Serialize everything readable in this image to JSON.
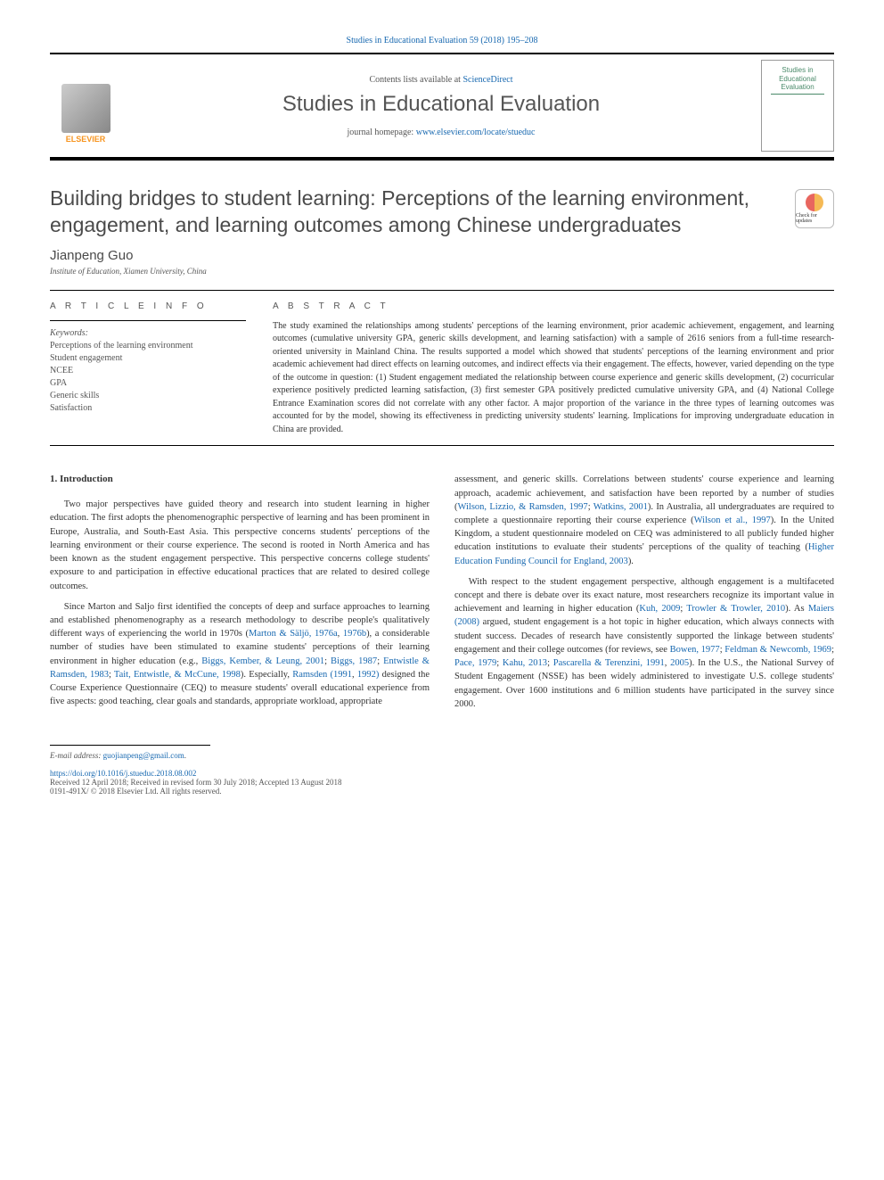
{
  "header": {
    "top_citation": "Studies in Educational Evaluation 59 (2018) 195–208",
    "contents_prefix": "Contents lists available at ",
    "contents_link": "ScienceDirect",
    "journal_name": "Studies in Educational Evaluation",
    "homepage_prefix": "journal homepage: ",
    "homepage_url": "www.elsevier.com/locate/stueduc",
    "elsevier_label": "ELSEVIER",
    "cover_line1": "Studies in",
    "cover_line2": "Educational",
    "cover_line3": "Evaluation"
  },
  "article": {
    "title": "Building bridges to student learning: Perceptions of the learning environment, engagement, and learning outcomes among Chinese undergraduates",
    "author": "Jianpeng Guo",
    "affiliation": "Institute of Education, Xiamen University, China",
    "crossmark_label": "Check for updates"
  },
  "info": {
    "heading": "A R T I C L E  I N F O",
    "keywords_label": "Keywords:",
    "keywords": "Perceptions of the learning environment\nStudent engagement\nNCEE\nGPA\nGeneric skills\nSatisfaction"
  },
  "abstract": {
    "heading": "A B S T R A C T",
    "text": "The study examined the relationships among students' perceptions of the learning environment, prior academic achievement, engagement, and learning outcomes (cumulative university GPA, generic skills development, and learning satisfaction) with a sample of 2616 seniors from a full-time research-oriented university in Mainland China. The results supported a model which showed that students' perceptions of the learning environment and prior academic achievement had direct effects on learning outcomes, and indirect effects via their engagement. The effects, however, varied depending on the type of the outcome in question: (1) Student engagement mediated the relationship between course experience and generic skills development, (2) cocurricular experience positively predicted learning satisfaction, (3) first semester GPA positively predicted cumulative university GPA, and (4) National College Entrance Examination scores did not correlate with any other factor. A major proportion of the variance in the three types of learning outcomes was accounted for by the model, showing its effectiveness in predicting university students' learning. Implications for improving undergraduate education in China are provided."
  },
  "body": {
    "section_heading": "1. Introduction",
    "left_p1": "Two major perspectives have guided theory and research into student learning in higher education. The first adopts the phenomenographic perspective of learning and has been prominent in Europe, Australia, and South-East Asia. This perspective concerns students' perceptions of the learning environment or their course experience. The second is rooted in North America and has been known as the student engagement perspective. This perspective concerns college students' exposure to and participation in effective educational practices that are related to desired college outcomes.",
    "left_p2_a": "Since Marton and Saljo first identified the concepts of deep and surface approaches to learning and established phenomenography as a research methodology to describe people's qualitatively different ways of experiencing the world in 1970s (",
    "left_p2_cite1": "Marton & Säljö, 1976a",
    "left_p2_b": ", ",
    "left_p2_cite2": "1976b",
    "left_p2_c": "), a considerable number of studies have been stimulated to examine students' perceptions of their learning environment in higher education (e.g., ",
    "left_p2_cite3": "Biggs, Kember, & Leung, 2001",
    "left_p2_d": "; ",
    "left_p2_cite4": "Biggs, 1987",
    "left_p2_e": "; ",
    "left_p2_cite5": "Entwistle & Ramsden, 1983",
    "left_p2_f": "; ",
    "left_p2_cite6": "Tait, Entwistle, & McCune, 1998",
    "left_p2_g": "). Especially, ",
    "left_p2_cite7": "Ramsden (1991",
    "left_p2_h": ", ",
    "left_p2_cite8": "1992)",
    "left_p2_i": " designed the Course Experience Questionnaire (CEQ) to measure students' overall educational experience from five aspects: good teaching, clear goals and standards, appropriate workload, appropriate",
    "right_p1_a": "assessment, and generic skills. Correlations between students' course experience and learning approach, academic achievement, and satisfaction have been reported by a number of studies (",
    "right_p1_cite1": "Wilson, Lizzio, & Ramsden, 1997",
    "right_p1_b": "; ",
    "right_p1_cite2": "Watkins, 2001",
    "right_p1_c": "). In Australia, all undergraduates are required to complete a questionnaire reporting their course experience (",
    "right_p1_cite3": "Wilson et al., 1997",
    "right_p1_d": "). In the United Kingdom, a student questionnaire modeled on CEQ was administered to all publicly funded higher education institutions to evaluate their students' perceptions of the quality of teaching (",
    "right_p1_cite4": "Higher Education Funding Council for England, 2003",
    "right_p1_e": ").",
    "right_p2_a": "With respect to the student engagement perspective, although engagement is a multifaceted concept and there is debate over its exact nature, most researchers recognize its important value in achievement and learning in higher education (",
    "right_p2_cite1": "Kuh, 2009",
    "right_p2_b": "; ",
    "right_p2_cite2": "Trowler & Trowler, 2010",
    "right_p2_c": "). As ",
    "right_p2_cite3": "Maiers (2008)",
    "right_p2_d": " argued, student engagement is a hot topic in higher education, which always connects with student success. Decades of research have consistently supported the linkage between students' engagement and their college outcomes (for reviews, see ",
    "right_p2_cite4": "Bowen, 1977",
    "right_p2_e": "; ",
    "right_p2_cite5": "Feldman & Newcomb, 1969",
    "right_p2_f": "; ",
    "right_p2_cite6": "Pace, 1979",
    "right_p2_g": "; ",
    "right_p2_cite7": "Kahu, 2013",
    "right_p2_h": "; ",
    "right_p2_cite8": "Pascarella & Terenzini, 1991",
    "right_p2_i": ", ",
    "right_p2_cite9": "2005",
    "right_p2_j": "). In the U.S., the National Survey of Student Engagement (NSSE) has been widely administered to investigate U.S. college students' engagement. Over 1600 institutions and 6 million students have participated in the survey since 2000."
  },
  "footer": {
    "email_label": "E-mail address: ",
    "email": "guojianpeng@gmail.com",
    "email_suffix": ".",
    "doi": "https://doi.org/10.1016/j.stueduc.2018.08.002",
    "received": "Received 12 April 2018; Received in revised form 30 July 2018; Accepted 13 August 2018",
    "issn": "0191-491X/ © 2018 Elsevier Ltd. All rights reserved."
  },
  "colors": {
    "link": "#1768b0",
    "elsevier_orange": "#f7941e",
    "cover_green": "#4a8a6a"
  }
}
